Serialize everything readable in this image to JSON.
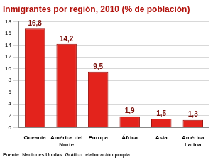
{
  "chart_data": {
    "type": "bar",
    "title": "Inmigrantes por región, 2010 (% de población)",
    "categories": [
      "Oceanía",
      "América del Norte",
      "Europa",
      "África",
      "Asia",
      "América Latina"
    ],
    "values": [
      16.8,
      14.2,
      9.5,
      1.9,
      1.5,
      1.3
    ],
    "value_labels": [
      "16,8",
      "14,2",
      "9,5",
      "1,9",
      "1,5",
      "1,3"
    ],
    "data_labels": true,
    "color": "#e3231c",
    "ylim": [
      0,
      18
    ],
    "yticks": [
      0,
      2,
      4,
      6,
      8,
      10,
      12,
      14,
      16,
      18
    ],
    "grid": true,
    "source": "Fuente: Naciones Unidas. Gráfico: elaboración propia"
  }
}
